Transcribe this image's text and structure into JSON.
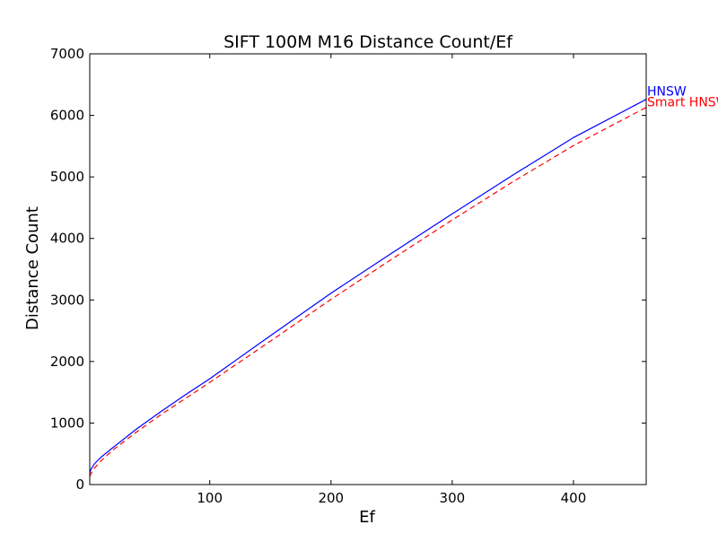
{
  "chart_data": {
    "type": "line",
    "title": "SIFT 100M M16 Distance Count/Ef",
    "xlabel": "Ef",
    "ylabel": "Distance Count",
    "xlim": [
      1,
      460
    ],
    "ylim": [
      0,
      7000
    ],
    "xticks": [
      100,
      200,
      300,
      400
    ],
    "yticks": [
      0,
      1000,
      2000,
      3000,
      4000,
      5000,
      6000,
      7000
    ],
    "grid": false,
    "legend": "inline labels at right end of lines",
    "x": [
      1,
      2,
      5,
      10,
      20,
      40,
      60,
      80,
      100,
      150,
      200,
      250,
      300,
      350,
      400,
      460
    ],
    "series": [
      {
        "name": "HNSW",
        "color": "#0000ff",
        "style": "solid",
        "values": [
          190,
          250,
          340,
          440,
          600,
          910,
          1190,
          1460,
          1720,
          2420,
          3110,
          3760,
          4400,
          5030,
          5640,
          6260
        ]
      },
      {
        "name": "Smart HNSW",
        "color": "#ff0000",
        "style": "dashed",
        "values": [
          130,
          180,
          270,
          380,
          560,
          860,
          1140,
          1400,
          1660,
          2330,
          3010,
          3660,
          4300,
          4920,
          5510,
          6130
        ]
      }
    ]
  }
}
